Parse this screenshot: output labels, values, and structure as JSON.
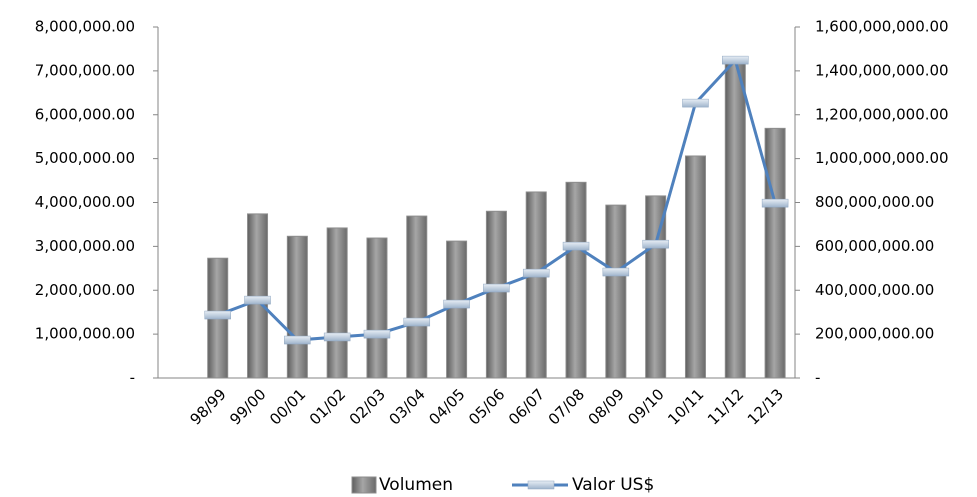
{
  "chart_data": {
    "type": "bar_line",
    "categories": [
      null,
      "98/99",
      "99/00",
      "00/01",
      "01/02",
      "02/03",
      "03/04",
      "04/05",
      "05/06",
      "06/07",
      "07/08",
      "08/09",
      "09/10",
      "10/11",
      "11/12",
      "12/13"
    ],
    "series": [
      {
        "name": "Volumen",
        "type": "bar",
        "color": "#8c8c8c",
        "values": [
          null,
          2730000,
          3740000,
          3230000,
          3420000,
          3190000,
          3690000,
          3120000,
          3800000,
          4240000,
          4460000,
          3940000,
          4150000,
          5060000,
          7290000,
          5690000
        ]
      },
      {
        "name": "Valor US$",
        "type": "line",
        "axis": "y2",
        "color": "#4f81bd",
        "values": [
          null,
          287000000,
          355000000,
          173000000,
          187000000,
          200000000,
          255000000,
          337000000,
          410000000,
          478000000,
          601000000,
          483000000,
          610000000,
          1253000000,
          1449000000,
          797000000
        ]
      }
    ],
    "ylim": [
      0,
      8000000
    ],
    "yticks": [
      {
        "value": 0,
        "label": "-"
      },
      {
        "value": 1000000,
        "label": "1,000,000.00"
      },
      {
        "value": 2000000,
        "label": "2,000,000.00"
      },
      {
        "value": 3000000,
        "label": "3,000,000.00"
      },
      {
        "value": 4000000,
        "label": "4,000,000.00"
      },
      {
        "value": 5000000,
        "label": "5,000,000.00"
      },
      {
        "value": 6000000,
        "label": "6,000,000.00"
      },
      {
        "value": 7000000,
        "label": "7,000,000.00"
      },
      {
        "value": 8000000,
        "label": "8,000,000.00"
      }
    ],
    "y2lim": [
      0,
      1600000000
    ],
    "y2ticks": [
      {
        "value": 0,
        "label": "-"
      },
      {
        "value": 200000000,
        "label": "200,000,000.00"
      },
      {
        "value": 400000000,
        "label": "400,000,000.00"
      },
      {
        "value": 600000000,
        "label": "600,000,000.00"
      },
      {
        "value": 800000000,
        "label": "800,000,000.00"
      },
      {
        "value": 1000000000,
        "label": "1,000,000,000.00"
      },
      {
        "value": 1200000000,
        "label": "1,200,000,000.00"
      },
      {
        "value": 1400000000,
        "label": "1,400,000,000.00"
      },
      {
        "value": 1600000000,
        "label": "1,600,000,000.00"
      }
    ],
    "legend": "bottom"
  }
}
